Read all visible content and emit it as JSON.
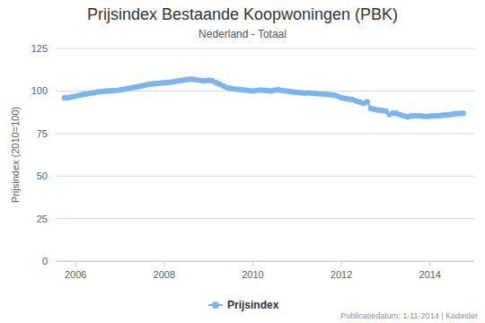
{
  "chart_data": {
    "type": "line",
    "title": "Prijsindex Bestaande Koopwoningen (PBK)",
    "subtitle": "Nederland - Totaal",
    "y_label": "Prijsindex (2010=100)",
    "annotations": [
      "Publicatiedatum: 1-11-2014 | Kadaster"
    ],
    "x": [
      2005.75,
      2005.833,
      2005.917,
      2006,
      2006.083,
      2006.167,
      2006.25,
      2006.333,
      2006.417,
      2006.5,
      2006.583,
      2006.667,
      2006.75,
      2006.833,
      2006.917,
      2007,
      2007.083,
      2007.167,
      2007.25,
      2007.333,
      2007.417,
      2007.5,
      2007.583,
      2007.667,
      2007.75,
      2007.833,
      2007.917,
      2008,
      2008.083,
      2008.167,
      2008.25,
      2008.333,
      2008.417,
      2008.5,
      2008.583,
      2008.667,
      2008.75,
      2008.833,
      2008.917,
      2009,
      2009.083,
      2009.167,
      2009.25,
      2009.333,
      2009.417,
      2009.5,
      2009.583,
      2009.667,
      2009.75,
      2009.833,
      2009.917,
      2010,
      2010.083,
      2010.167,
      2010.25,
      2010.333,
      2010.417,
      2010.5,
      2010.583,
      2010.667,
      2010.75,
      2010.833,
      2010.917,
      2011,
      2011.083,
      2011.167,
      2011.25,
      2011.333,
      2011.417,
      2011.5,
      2011.583,
      2011.667,
      2011.75,
      2011.833,
      2011.917,
      2012,
      2012.083,
      2012.167,
      2012.25,
      2012.333,
      2012.417,
      2012.5,
      2012.583,
      2012.667,
      2012.75,
      2012.833,
      2012.917,
      2013,
      2013.083,
      2013.167,
      2013.25,
      2013.333,
      2013.417,
      2013.5,
      2013.583,
      2013.667,
      2013.75,
      2013.833,
      2013.917,
      2014,
      2014.083,
      2014.167,
      2014.25,
      2014.333,
      2014.417,
      2014.5,
      2014.583,
      2014.667,
      2014.75
    ],
    "series": [
      {
        "name": "Prijsindex",
        "color": "#7cb5ec",
        "marker": "circle",
        "values": [
          96,
          96,
          96.5,
          97,
          97.5,
          98,
          98.3,
          98.7,
          99,
          99.4,
          99.7,
          100,
          100,
          100.2,
          100.3,
          100.6,
          101,
          101.4,
          101.8,
          102.2,
          102.6,
          103,
          103.5,
          104,
          104.2,
          104.4,
          104.6,
          104.8,
          105,
          105.3,
          105.6,
          106,
          106.3,
          106.7,
          107,
          106.8,
          106.5,
          106.2,
          106,
          106.3,
          106,
          105,
          104,
          103,
          102,
          101.5,
          101.2,
          101,
          100.8,
          100.5,
          100.2,
          100,
          100.3,
          100.5,
          100.4,
          100.2,
          100,
          100.5,
          100.6,
          100.3,
          100,
          99.7,
          99.4,
          99.2,
          99,
          98.8,
          98.9,
          98.7,
          98.5,
          98.3,
          98.2,
          98,
          97.8,
          97.5,
          97,
          96,
          95.6,
          95.2,
          95,
          94.2,
          93.5,
          92.8,
          93.6,
          89.8,
          89.3,
          88.8,
          88.5,
          88.2,
          86.2,
          87,
          86.8,
          86,
          85.3,
          84.8,
          85.3,
          85.5,
          85.4,
          85.2,
          85,
          85.2,
          85.3,
          85.5,
          85.6,
          85.8,
          86,
          86.3,
          86.6,
          86.8,
          86.9
        ]
      }
    ],
    "xlim": [
      2005.55,
      2015
    ],
    "xticks": [
      2006,
      2008,
      2010,
      2012,
      2014
    ],
    "ylim": [
      0,
      125
    ],
    "yticks": [
      0,
      25,
      50,
      75,
      100,
      125
    ],
    "grid": true,
    "legend": "bottom"
  }
}
